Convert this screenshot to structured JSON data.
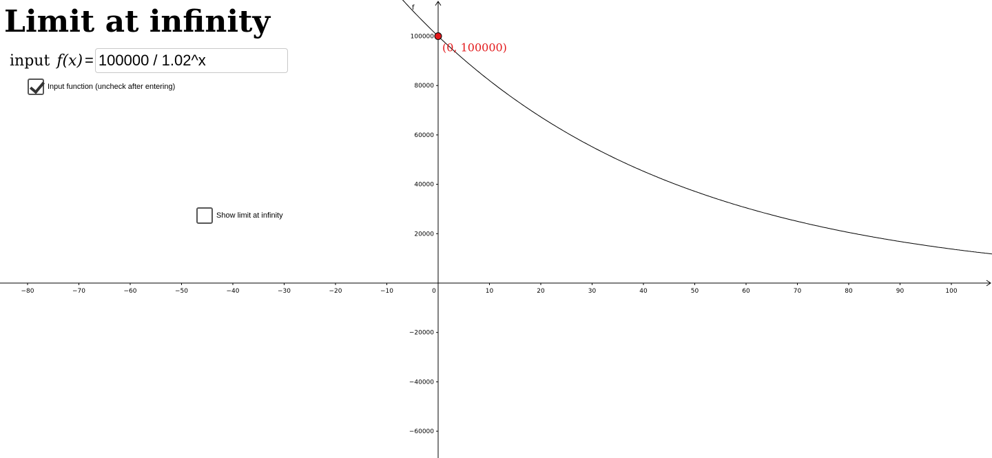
{
  "title": "Limit at infinity",
  "input": {
    "label_prefix": "input",
    "label_fx": "f(x)",
    "equals": "=",
    "value": "100000 / 1.02^x"
  },
  "checkboxes": {
    "input_function": {
      "label": "Input function (uncheck after entering)",
      "checked": true
    },
    "show_limit": {
      "label": "Show limit at infinity",
      "checked": false
    }
  },
  "chart_data": {
    "type": "line",
    "function_label": "f",
    "expression": "100000 / 1.02^x",
    "xlim": [
      -85,
      108
    ],
    "ylim": [
      -70000,
      113000
    ],
    "x_ticks": [
      -80,
      -70,
      -60,
      -50,
      -40,
      -30,
      -20,
      -10,
      0,
      10,
      20,
      30,
      40,
      50,
      60,
      70,
      80,
      90,
      100
    ],
    "x_tick_labels": [
      "−80",
      "−70",
      "−60",
      "−50",
      "−40",
      "−30",
      "−20",
      "−10",
      "0",
      "10",
      "20",
      "30",
      "40",
      "50",
      "60",
      "70",
      "80",
      "90",
      "100"
    ],
    "y_ticks": [
      100000,
      80000,
      60000,
      40000,
      20000,
      -20000,
      -40000,
      -60000
    ],
    "y_tick_labels": [
      "100000",
      "80000",
      "60000",
      "40000",
      "20000",
      "−20000",
      "−40000",
      "−60000"
    ],
    "point": {
      "x": 0,
      "y": 100000,
      "label": "(0, 100000)"
    },
    "colors": {
      "curve": "#000000",
      "point": "#e31a1c",
      "point_label": "#e31a1c",
      "axis": "#000000"
    }
  }
}
